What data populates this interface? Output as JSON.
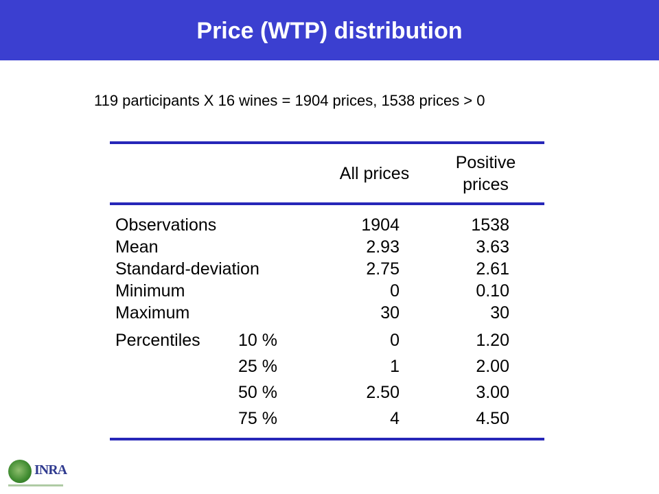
{
  "slide": {
    "title": "Price (WTP) distribution",
    "subtitle": "119 participants X 16 wines = 1904 prices, 1538 prices > 0"
  },
  "table": {
    "col_all": "All prices",
    "col_pos_line1": "Positive",
    "col_pos_line2": "prices",
    "rows": [
      {
        "label": "Observations",
        "all": "1904",
        "pos": "1538"
      },
      {
        "label": "Mean",
        "all": "2.93",
        "pos": "3.63"
      },
      {
        "label": "Standard-deviation",
        "all": "2.75",
        "pos": "2.61"
      },
      {
        "label": "Minimum",
        "all": "0",
        "pos": "0.10"
      },
      {
        "label": "Maximum",
        "all": "30",
        "pos": "30"
      }
    ],
    "percentiles_label": "Percentiles",
    "percentiles": [
      {
        "pct": "10 %",
        "all": "0",
        "pos": "1.20"
      },
      {
        "pct": "25 %",
        "all": "1",
        "pos": "2.00"
      },
      {
        "pct": "50 %",
        "all": "2.50",
        "pos": "3.00"
      },
      {
        "pct": "75 %",
        "all": "4",
        "pos": "4.50"
      }
    ]
  },
  "logo": {
    "text": "INRA",
    "color": "#2f3a8f",
    "leaf_color": "#3e8a2f"
  },
  "colors": {
    "title_bar": "#3b3fd0",
    "rule": "#2727b8"
  }
}
